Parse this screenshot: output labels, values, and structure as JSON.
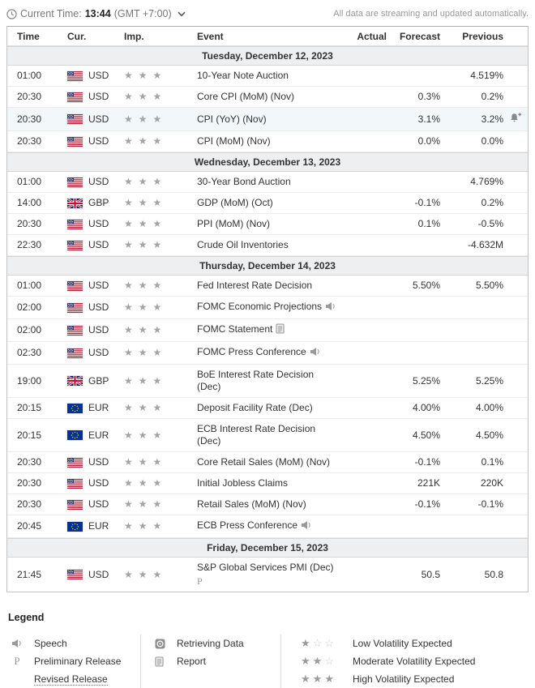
{
  "topbar": {
    "current_time_label": "Current Time:",
    "current_time": "13:44",
    "timezone": "(GMT +7:00)",
    "streaming_note": "All data are streaming and updated automatically."
  },
  "table_headers": {
    "time": "Time",
    "cur": "Cur.",
    "imp": "Imp.",
    "event": "Event",
    "actual": "Actual",
    "forecast": "Forecast",
    "previous": "Previous"
  },
  "colors": {
    "section_bg": "#edeff1",
    "highlight_row_bg": "#f2f7fa",
    "star_filled": "#9b9b9b",
    "star_empty": "#c9c9c9",
    "text": "#333333",
    "muted": "#999999"
  },
  "sections": [
    {
      "date": "Tuesday, December 12, 2023",
      "rows": [
        {
          "time": "01:00",
          "cur": "USD",
          "flag": "us",
          "stars": 3,
          "event": "10-Year Note Auction",
          "icon": null,
          "marker": "",
          "actual": "",
          "forecast": "",
          "previous": "4.519%",
          "highlight": false,
          "alert": false
        },
        {
          "time": "20:30",
          "cur": "USD",
          "flag": "us",
          "stars": 3,
          "event": "Core CPI (MoM) (Nov)",
          "icon": null,
          "marker": "",
          "actual": "",
          "forecast": "0.3%",
          "previous": "0.2%",
          "highlight": false,
          "alert": false
        },
        {
          "time": "20:30",
          "cur": "USD",
          "flag": "us",
          "stars": 3,
          "event": "CPI (YoY) (Nov)",
          "icon": null,
          "marker": "",
          "actual": "",
          "forecast": "3.1%",
          "previous": "3.2%",
          "highlight": true,
          "alert": true
        },
        {
          "time": "20:30",
          "cur": "USD",
          "flag": "us",
          "stars": 3,
          "event": "CPI (MoM) (Nov)",
          "icon": null,
          "marker": "",
          "actual": "",
          "forecast": "0.0%",
          "previous": "0.0%",
          "highlight": false,
          "alert": false
        }
      ]
    },
    {
      "date": "Wednesday, December 13, 2023",
      "rows": [
        {
          "time": "01:00",
          "cur": "USD",
          "flag": "us",
          "stars": 3,
          "event": "30-Year Bond Auction",
          "icon": null,
          "marker": "",
          "actual": "",
          "forecast": "",
          "previous": "4.769%",
          "highlight": false,
          "alert": false
        },
        {
          "time": "14:00",
          "cur": "GBP",
          "flag": "uk",
          "stars": 3,
          "event": "GDP (MoM) (Oct)",
          "icon": null,
          "marker": "",
          "actual": "",
          "forecast": "-0.1%",
          "previous": "0.2%",
          "highlight": false,
          "alert": false
        },
        {
          "time": "20:30",
          "cur": "USD",
          "flag": "us",
          "stars": 3,
          "event": "PPI (MoM) (Nov)",
          "icon": null,
          "marker": "",
          "actual": "",
          "forecast": "0.1%",
          "previous": "-0.5%",
          "highlight": false,
          "alert": false
        },
        {
          "time": "22:30",
          "cur": "USD",
          "flag": "us",
          "stars": 3,
          "event": "Crude Oil Inventories",
          "icon": null,
          "marker": "",
          "actual": "",
          "forecast": "",
          "previous": "-4.632M",
          "highlight": false,
          "alert": false
        }
      ]
    },
    {
      "date": "Thursday, December 14, 2023",
      "rows": [
        {
          "time": "01:00",
          "cur": "USD",
          "flag": "us",
          "stars": 3,
          "event": "Fed Interest Rate Decision",
          "icon": null,
          "marker": "",
          "actual": "",
          "forecast": "5.50%",
          "previous": "5.50%",
          "highlight": false,
          "alert": false
        },
        {
          "time": "02:00",
          "cur": "USD",
          "flag": "us",
          "stars": 3,
          "event": "FOMC Economic Projections",
          "icon": "speech",
          "marker": "",
          "actual": "",
          "forecast": "",
          "previous": "",
          "highlight": false,
          "alert": false
        },
        {
          "time": "02:00",
          "cur": "USD",
          "flag": "us",
          "stars": 3,
          "event": "FOMC Statement",
          "icon": "report",
          "marker": "",
          "actual": "",
          "forecast": "",
          "previous": "",
          "highlight": false,
          "alert": false
        },
        {
          "time": "02:30",
          "cur": "USD",
          "flag": "us",
          "stars": 3,
          "event": "FOMC Press Conference",
          "icon": "speech",
          "marker": "",
          "actual": "",
          "forecast": "",
          "previous": "",
          "highlight": false,
          "alert": false
        },
        {
          "time": "19:00",
          "cur": "GBP",
          "flag": "uk",
          "stars": 3,
          "event": "BoE Interest Rate Decision\n(Dec)",
          "icon": null,
          "marker": "",
          "actual": "",
          "forecast": "5.25%",
          "previous": "5.25%",
          "highlight": false,
          "alert": false
        },
        {
          "time": "20:15",
          "cur": "EUR",
          "flag": "eu",
          "stars": 3,
          "event": "Deposit Facility Rate (Dec)",
          "icon": null,
          "marker": "",
          "actual": "",
          "forecast": "4.00%",
          "previous": "4.00%",
          "highlight": false,
          "alert": false
        },
        {
          "time": "20:15",
          "cur": "EUR",
          "flag": "eu",
          "stars": 3,
          "event": "ECB Interest Rate Decision\n(Dec)",
          "icon": null,
          "marker": "",
          "actual": "",
          "forecast": "4.50%",
          "previous": "4.50%",
          "highlight": false,
          "alert": false
        },
        {
          "time": "20:30",
          "cur": "USD",
          "flag": "us",
          "stars": 3,
          "event": "Core Retail Sales (MoM) (Nov)",
          "icon": null,
          "marker": "",
          "actual": "",
          "forecast": "-0.1%",
          "previous": "0.1%",
          "highlight": false,
          "alert": false
        },
        {
          "time": "20:30",
          "cur": "USD",
          "flag": "us",
          "stars": 3,
          "event": "Initial Jobless Claims",
          "icon": null,
          "marker": "",
          "actual": "",
          "forecast": "221K",
          "previous": "220K",
          "highlight": false,
          "alert": false
        },
        {
          "time": "20:30",
          "cur": "USD",
          "flag": "us",
          "stars": 3,
          "event": "Retail Sales (MoM) (Nov)",
          "icon": null,
          "marker": "",
          "actual": "",
          "forecast": "-0.1%",
          "previous": "-0.1%",
          "highlight": false,
          "alert": false
        },
        {
          "time": "20:45",
          "cur": "EUR",
          "flag": "eu",
          "stars": 3,
          "event": "ECB Press Conference",
          "icon": "speech",
          "marker": "",
          "actual": "",
          "forecast": "",
          "previous": "",
          "highlight": false,
          "alert": false
        }
      ]
    },
    {
      "date": "Friday, December 15, 2023",
      "rows": [
        {
          "time": "21:45",
          "cur": "USD",
          "flag": "us",
          "stars": 3,
          "event": "S&P Global Services PMI (Dec)",
          "icon": null,
          "marker": "P",
          "actual": "",
          "forecast": "50.5",
          "previous": "50.8",
          "highlight": false,
          "alert": false
        }
      ]
    }
  ],
  "legend": {
    "title": "Legend",
    "speech_label": "Speech",
    "preliminary_marker": "P",
    "preliminary_label": "Preliminary Release",
    "revised_label": "Revised Release",
    "retrieving_label": "Retrieving Data",
    "report_label": "Report",
    "volatility": [
      {
        "filled": 1,
        "label": "Low Volatility Expected"
      },
      {
        "filled": 2,
        "label": "Moderate Volatility Expected"
      },
      {
        "filled": 3,
        "label": "High Volatility Expected"
      }
    ]
  }
}
